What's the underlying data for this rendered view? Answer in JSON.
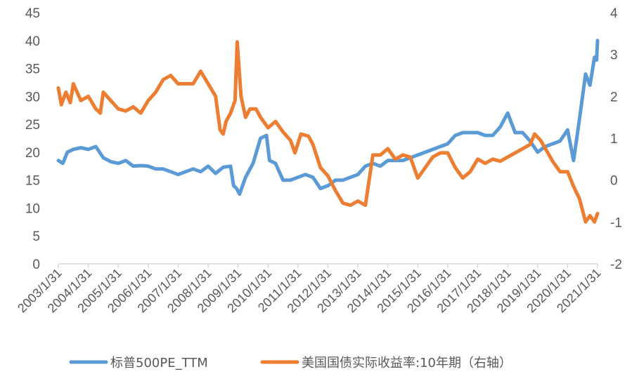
{
  "chart_data": {
    "type": "line",
    "title": "",
    "colors": {
      "pe": "#5B9BD5",
      "yield": "#ED7D31",
      "axis": "#D9D9D9",
      "text": "#595959"
    },
    "y_left": {
      "ylim": [
        0,
        45
      ],
      "ticks": [
        "0",
        "5",
        "10",
        "15",
        "20",
        "25",
        "30",
        "35",
        "40",
        "45"
      ]
    },
    "y_right": {
      "ylim": [
        -2,
        4
      ],
      "ticks": [
        "-2",
        "-1",
        "0",
        "1",
        "2",
        "3",
        "4"
      ]
    },
    "x_ticks": [
      "2003/1/31",
      "2004/1/31",
      "2005/1/31",
      "2006/1/31",
      "2007/1/31",
      "2008/1/31",
      "2009/1/31",
      "2010/1/31",
      "2011/1/31",
      "2012/1/31",
      "2013/1/31",
      "2014/1/31",
      "2015/1/31",
      "2016/1/31",
      "2017/1/31",
      "2018/1/31",
      "2019/1/31",
      "2020/1/31",
      "2021/1/31"
    ],
    "x_range": [
      2003.0,
      2021.0
    ],
    "series": [
      {
        "name": "标普500PE_TTM",
        "axis": "left",
        "x": [
          2003.0,
          2003.15,
          2003.3,
          2003.5,
          2003.75,
          2004.0,
          2004.25,
          2004.5,
          2004.75,
          2005.0,
          2005.25,
          2005.5,
          2005.75,
          2006.0,
          2006.25,
          2006.5,
          2006.75,
          2007.0,
          2007.25,
          2007.5,
          2007.75,
          2008.0,
          2008.25,
          2008.5,
          2008.75,
          2008.85,
          2008.95,
          2009.05,
          2009.25,
          2009.5,
          2009.75,
          2009.95,
          2010.05,
          2010.25,
          2010.5,
          2010.75,
          2011.0,
          2011.25,
          2011.5,
          2011.75,
          2012.0,
          2012.25,
          2012.5,
          2012.75,
          2013.0,
          2013.25,
          2013.5,
          2013.75,
          2014.0,
          2014.25,
          2014.5,
          2014.75,
          2015.0,
          2015.25,
          2015.5,
          2015.75,
          2016.0,
          2016.25,
          2016.5,
          2016.75,
          2017.0,
          2017.25,
          2017.5,
          2017.75,
          2018.0,
          2018.25,
          2018.5,
          2018.75,
          2019.0,
          2019.25,
          2019.5,
          2019.75,
          2020.0,
          2020.2,
          2020.4,
          2020.6,
          2020.75,
          2020.9,
          2020.97,
          2021.0
        ],
        "values": [
          18.5,
          18,
          20,
          20.5,
          20.8,
          20.5,
          21,
          19,
          18.3,
          18,
          18.5,
          17.5,
          17.6,
          17.5,
          17,
          17,
          16.5,
          16,
          16.5,
          17,
          16.5,
          17.5,
          16.2,
          17.3,
          17.5,
          14,
          13.5,
          12.5,
          15.5,
          18,
          22.5,
          23,
          18.5,
          18,
          15,
          15,
          15.5,
          16,
          15.5,
          13.5,
          14,
          15,
          15,
          15.5,
          16,
          17.5,
          18,
          17.5,
          18.5,
          18.5,
          18.5,
          19,
          19.5,
          20,
          20.5,
          21,
          21.5,
          23,
          23.5,
          23.5,
          23.5,
          23,
          23,
          24.5,
          27,
          23.5,
          23.5,
          22,
          20,
          21,
          21.5,
          22,
          24,
          18.5,
          26,
          34,
          32,
          37,
          36.5,
          40
        ]
      },
      {
        "name": "美国国债实际收益率:10年期（右轴）",
        "axis": "right",
        "x": [
          2003.0,
          2003.1,
          2003.25,
          2003.4,
          2003.5,
          2003.75,
          2004.0,
          2004.25,
          2004.4,
          2004.5,
          2004.75,
          2005.0,
          2005.25,
          2005.5,
          2005.75,
          2006.0,
          2006.25,
          2006.5,
          2006.75,
          2007.0,
          2007.25,
          2007.5,
          2007.75,
          2008.0,
          2008.25,
          2008.4,
          2008.5,
          2008.6,
          2008.75,
          2008.9,
          2008.97,
          2009.1,
          2009.25,
          2009.4,
          2009.6,
          2009.75,
          2010.0,
          2010.25,
          2010.5,
          2010.75,
          2010.9,
          2011.1,
          2011.35,
          2011.5,
          2011.75,
          2012.0,
          2012.25,
          2012.5,
          2012.75,
          2013.0,
          2013.25,
          2013.5,
          2013.75,
          2014.0,
          2014.25,
          2014.5,
          2014.75,
          2015.0,
          2015.25,
          2015.5,
          2015.75,
          2016.0,
          2016.25,
          2016.5,
          2016.75,
          2017.0,
          2017.25,
          2017.5,
          2017.75,
          2018.0,
          2018.25,
          2018.5,
          2018.75,
          2018.9,
          2019.1,
          2019.3,
          2019.5,
          2019.75,
          2020.0,
          2020.2,
          2020.4,
          2020.6,
          2020.75,
          2020.9,
          2021.0
        ],
        "values": [
          2.2,
          1.8,
          2.1,
          1.85,
          2.3,
          1.9,
          2.0,
          1.7,
          1.6,
          2.1,
          1.9,
          1.7,
          1.65,
          1.75,
          1.6,
          1.9,
          2.1,
          2.4,
          2.5,
          2.3,
          2.3,
          2.3,
          2.6,
          2.3,
          2.0,
          1.2,
          1.1,
          1.4,
          1.6,
          1.9,
          3.3,
          2.0,
          1.5,
          1.7,
          1.7,
          1.5,
          1.25,
          1.4,
          1.15,
          0.95,
          0.65,
          1.1,
          1.05,
          0.85,
          0.3,
          0.1,
          -0.25,
          -0.55,
          -0.6,
          -0.5,
          -0.6,
          0.6,
          0.6,
          0.75,
          0.5,
          0.6,
          0.55,
          0.05,
          0.3,
          0.55,
          0.65,
          0.65,
          0.3,
          0.05,
          0.2,
          0.5,
          0.4,
          0.5,
          0.45,
          0.55,
          0.65,
          0.75,
          0.85,
          1.1,
          0.95,
          0.7,
          0.45,
          0.2,
          0.2,
          -0.15,
          -0.45,
          -1.0,
          -0.85,
          -1.0,
          -0.8
        ]
      }
    ],
    "legend": {
      "placement": "bottom",
      "entries": [
        "标普500PE_TTM",
        "美国国债实际收益率:10年期（右轴）"
      ]
    }
  }
}
